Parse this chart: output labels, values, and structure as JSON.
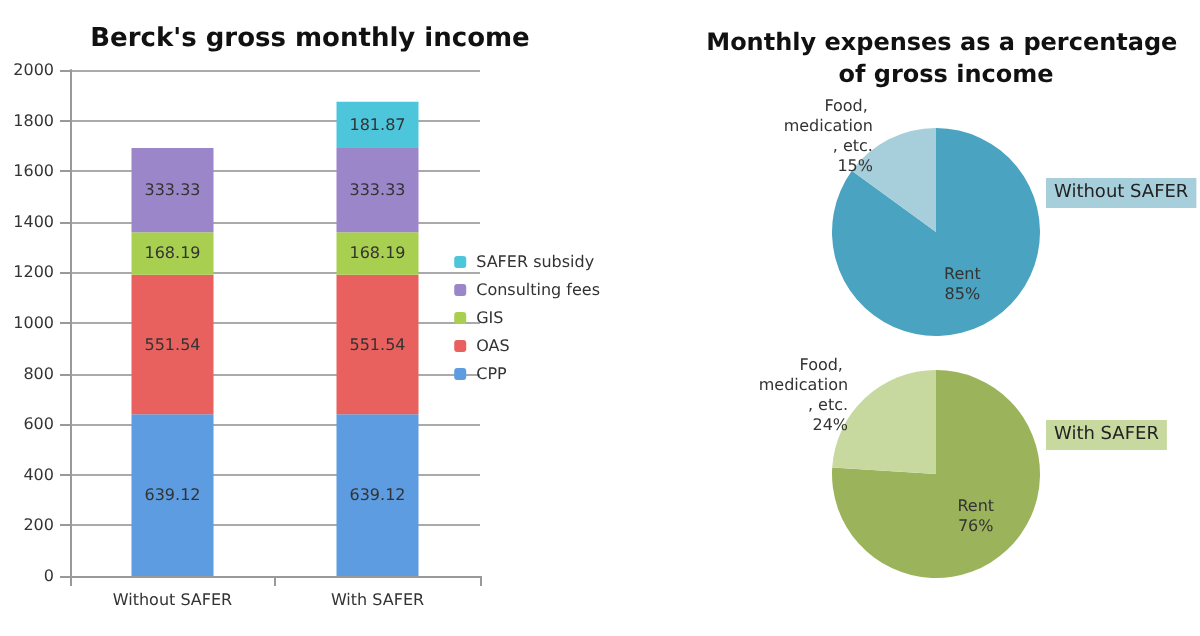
{
  "chart_data": [
    {
      "type": "bar",
      "title": "Berck's gross monthly income",
      "categories": [
        "Without SAFER",
        "With SAFER"
      ],
      "stacked": true,
      "data_labels": true,
      "grid": "y",
      "legend": "right",
      "ylim": [
        0,
        2000
      ],
      "yticks": [
        0,
        200,
        400,
        600,
        800,
        1000,
        1200,
        1400,
        1600,
        1800,
        2000
      ],
      "series": [
        {
          "name": "CPP",
          "color": "#5d9ce0",
          "values": [
            639.12,
            639.12
          ]
        },
        {
          "name": "OAS",
          "color": "#e8615e",
          "values": [
            551.54,
            551.54
          ]
        },
        {
          "name": "GIS",
          "color": "#a8cf4f",
          "values": [
            168.19,
            168.19
          ]
        },
        {
          "name": "Consulting fees",
          "color": "#9b86c9",
          "values": [
            333.33,
            333.33
          ]
        },
        {
          "name": "SAFER subsidy",
          "color": "#4dc6dc",
          "values": [
            null,
            181.87
          ]
        }
      ]
    },
    {
      "type": "pie",
      "title": "Monthly expenses as a percentage of gross income",
      "subtitle": "Without SAFER",
      "categories": [
        "Rent",
        "Food, medication, etc."
      ],
      "values": [
        85,
        15
      ],
      "value_labels": [
        "85%",
        "15%"
      ],
      "colors": [
        "#4aa3c0",
        "#a7cfdb"
      ]
    },
    {
      "type": "pie",
      "subtitle": "With SAFER",
      "categories": [
        "Rent",
        "Food, medication, etc."
      ],
      "values": [
        76,
        24
      ],
      "value_labels": [
        "76%",
        "24%"
      ],
      "colors": [
        "#9bb35a",
        "#c8d9a0"
      ]
    }
  ]
}
